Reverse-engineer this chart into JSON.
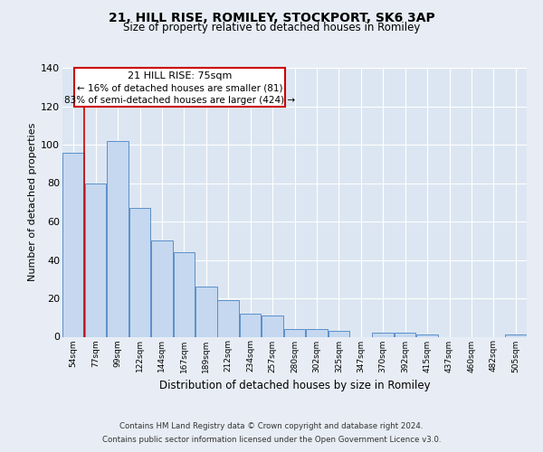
{
  "title1": "21, HILL RISE, ROMILEY, STOCKPORT, SK6 3AP",
  "title2": "Size of property relative to detached houses in Romiley",
  "xlabel": "Distribution of detached houses by size in Romiley",
  "ylabel": "Number of detached properties",
  "bar_labels": [
    "54sqm",
    "77sqm",
    "99sqm",
    "122sqm",
    "144sqm",
    "167sqm",
    "189sqm",
    "212sqm",
    "234sqm",
    "257sqm",
    "280sqm",
    "302sqm",
    "325sqm",
    "347sqm",
    "370sqm",
    "392sqm",
    "415sqm",
    "437sqm",
    "460sqm",
    "482sqm",
    "505sqm"
  ],
  "bar_values": [
    96,
    80,
    102,
    67,
    50,
    44,
    26,
    19,
    12,
    11,
    4,
    4,
    3,
    0,
    2,
    2,
    1,
    0,
    0,
    0,
    1
  ],
  "bar_color": "#c5d8f0",
  "bar_edge_color": "#5b8fc9",
  "background_color": "#e8edf5",
  "plot_bg_color": "#dce6f2",
  "grid_color": "#ffffff",
  "annotation_title": "21 HILL RISE: 75sqm",
  "annotation_line1": "← 16% of detached houses are smaller (81)",
  "annotation_line2": "83% of semi-detached houses are larger (424) →",
  "annot_box_color": "#ffffff",
  "annot_box_edge": "#cc0000",
  "redline_color": "#cc0000",
  "footer1": "Contains HM Land Registry data © Crown copyright and database right 2024.",
  "footer2": "Contains public sector information licensed under the Open Government Licence v3.0.",
  "ylim": [
    0,
    140
  ],
  "yticks": [
    0,
    20,
    40,
    60,
    80,
    100,
    120,
    140
  ]
}
